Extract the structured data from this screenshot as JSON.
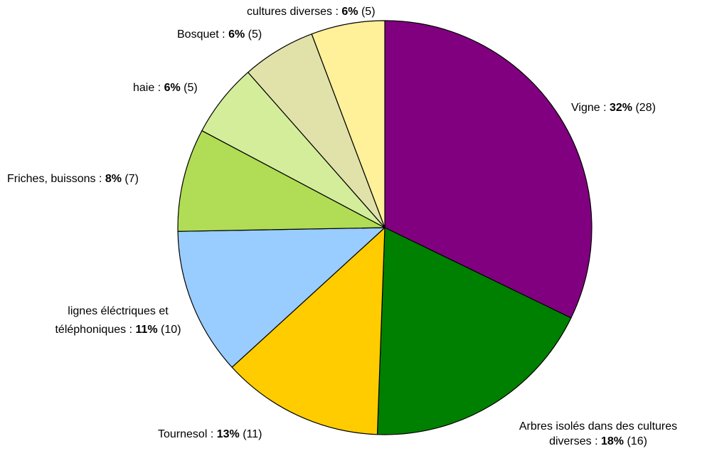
{
  "chart_data": {
    "type": "pie",
    "title": "",
    "start": "12 o'clock",
    "direction": "clockwise",
    "legend": "none",
    "slices": [
      {
        "label": "Vigne",
        "percent": "32%",
        "count": 28,
        "color": "#800080"
      },
      {
        "label": "Arbres isolés dans des cultures diverses",
        "percent": "18%",
        "count": 16,
        "color": "#008000"
      },
      {
        "label": "Tournesol",
        "percent": "13%",
        "count": 11,
        "color": "#FFCC00"
      },
      {
        "label": "lignes éléctriques et téléphoniques",
        "percent": "11%",
        "count": 10,
        "color": "#99CCFF"
      },
      {
        "label": "Friches, buissons",
        "percent": "8%",
        "count": 7,
        "color": "#B0DD55"
      },
      {
        "label": "haie",
        "percent": "6%",
        "count": 5,
        "color": "#D4ED9A"
      },
      {
        "label": "Bosquet",
        "percent": "6%",
        "count": 5,
        "color": "#E0E2AA"
      },
      {
        "label": "cultures diverses",
        "percent": "6%",
        "count": 5,
        "color": "#FFF09A"
      }
    ]
  }
}
